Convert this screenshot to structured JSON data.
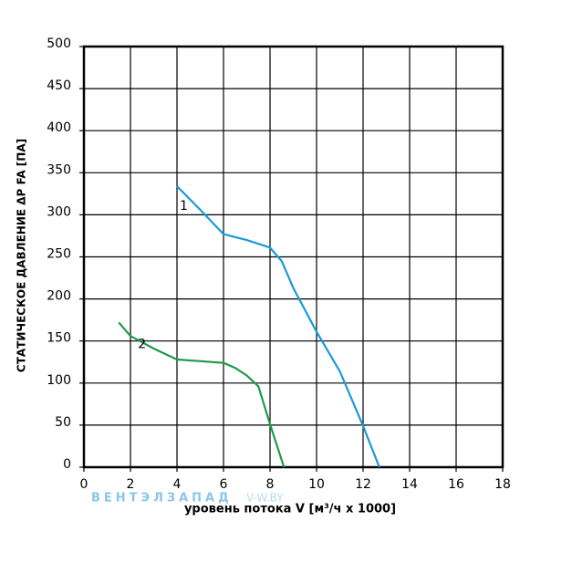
{
  "chart_data": {
    "type": "line",
    "y_label": "СТАТИЧЕСКОЕ ДАВЛЕНИЕ ΔP FA [ПА]",
    "x_label": "уровень потока V [м³/ч x 1000]",
    "watermark": "ВЕНТЭЛЗАПАД",
    "watermark2": "V-W.BY",
    "xlim": [
      0,
      18
    ],
    "xticks": [
      0,
      2,
      4,
      6,
      8,
      10,
      12,
      14,
      16,
      18
    ],
    "ylim": [
      0,
      500
    ],
    "yticks": [
      0,
      50,
      100,
      150,
      200,
      250,
      300,
      350,
      400,
      450,
      500
    ],
    "grid": true,
    "series": [
      {
        "name": "1",
        "color": "#1a9ad6",
        "x": [
          4,
          5,
          6,
          7,
          8,
          8.5,
          9,
          10,
          11,
          12,
          12.7
        ],
        "values": [
          334,
          306,
          277,
          270,
          261,
          245,
          213,
          161,
          114,
          49,
          0
        ]
      },
      {
        "name": "2",
        "color": "#1e9a4a",
        "x": [
          1.5,
          2,
          3,
          4,
          5,
          6,
          6.5,
          7,
          7.5,
          8,
          8.6
        ],
        "values": [
          172,
          156,
          141,
          128,
          126,
          124,
          118,
          109,
          96,
          51,
          0
        ]
      }
    ]
  }
}
